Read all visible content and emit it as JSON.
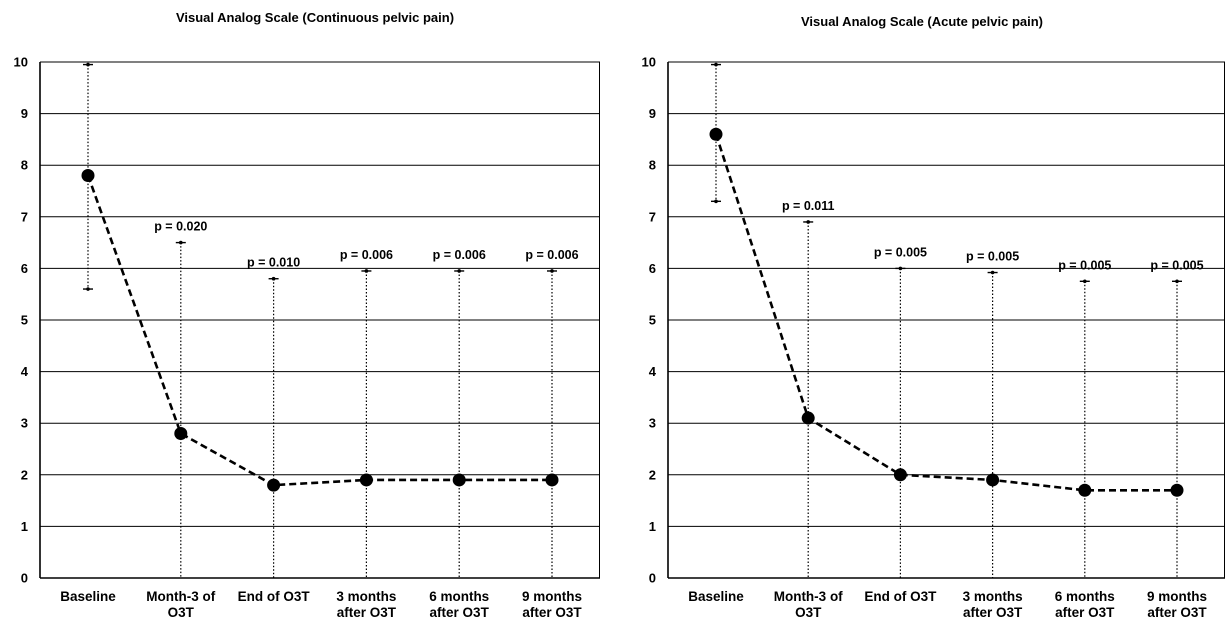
{
  "chart_data": [
    {
      "type": "line",
      "title": "Visual Analog Scale (Continuous pelvic pain)",
      "xlabel": "",
      "ylabel": "",
      "ylim": [
        0,
        10
      ],
      "yticks": [
        "0",
        "1",
        "2",
        "3",
        "4",
        "5",
        "6",
        "7",
        "8",
        "9",
        "10"
      ],
      "grid": true,
      "categories": [
        [
          "Baseline"
        ],
        [
          "Month-3 of",
          "O3T"
        ],
        [
          "End of O3T"
        ],
        [
          "3 months",
          "after O3T"
        ],
        [
          "6 months",
          "after O3T"
        ],
        [
          "9 months",
          "after O3T"
        ]
      ],
      "series": [
        {
          "values": [
            7.8,
            2.8,
            1.8,
            1.9,
            1.9,
            1.9
          ],
          "error_upper": [
            9.95,
            6.5,
            5.8,
            5.95,
            5.95,
            5.95
          ],
          "error_lower": [
            5.6,
            0,
            0,
            0,
            0,
            0
          ]
        }
      ],
      "annotations": [
        "",
        "p = 0.020",
        "p = 0.010",
        "p = 0.006",
        "p = 0.006",
        "p = 0.006"
      ],
      "colors": {
        "line": "#000000",
        "grid": "#000000",
        "marker": "#000000"
      }
    },
    {
      "type": "line",
      "title": "Visual Analog Scale (Acute pelvic pain)",
      "xlabel": "",
      "ylabel": "",
      "ylim": [
        0,
        10
      ],
      "yticks": [
        "0",
        "1",
        "2",
        "3",
        "4",
        "5",
        "6",
        "7",
        "8",
        "9",
        "10"
      ],
      "grid": true,
      "categories": [
        [
          "Baseline"
        ],
        [
          "Month-3 of",
          "O3T"
        ],
        [
          "End of O3T"
        ],
        [
          "3 months",
          "after O3T"
        ],
        [
          "6 months",
          "after O3T"
        ],
        [
          "9 months",
          "after O3T"
        ]
      ],
      "series": [
        {
          "values": [
            8.6,
            3.1,
            2.0,
            1.9,
            1.7,
            1.7
          ],
          "error_upper": [
            9.95,
            6.9,
            6.0,
            5.92,
            5.75,
            5.75
          ],
          "error_lower": [
            7.3,
            0,
            0,
            0,
            0,
            0
          ]
        }
      ],
      "annotations": [
        "",
        "p = 0.011",
        "p = 0.005",
        "p = 0.005",
        "p = 0.005",
        "p = 0.005"
      ],
      "colors": {
        "line": "#000000",
        "grid": "#000000",
        "marker": "#000000"
      }
    }
  ]
}
